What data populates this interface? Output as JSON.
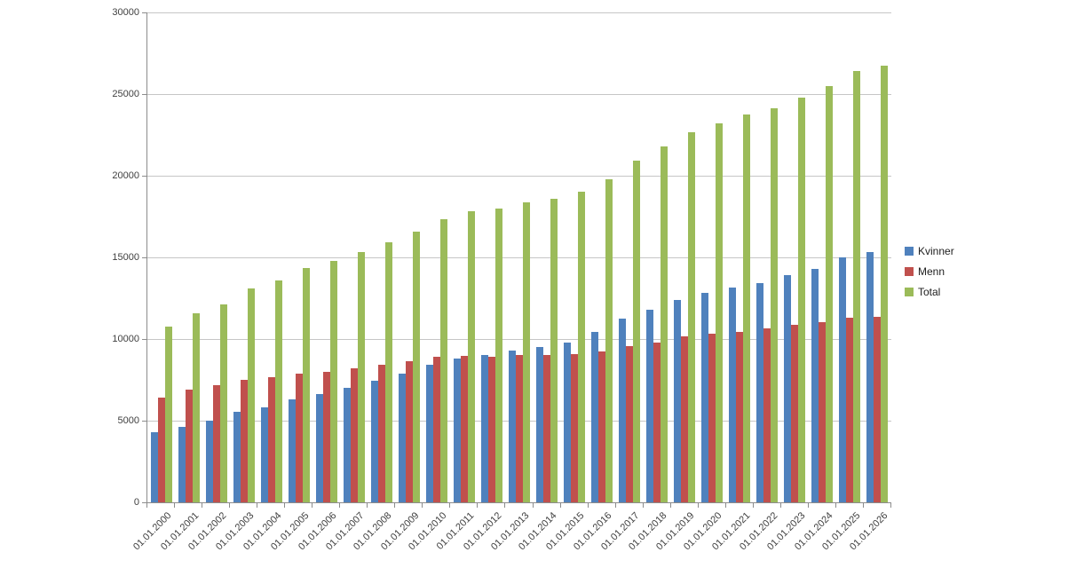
{
  "chart_data": {
    "type": "bar",
    "title": "",
    "xlabel": "",
    "ylabel": "",
    "ylim": [
      0,
      30000
    ],
    "ytick_step": 5000,
    "grid": "horizontal",
    "legend_position": "right",
    "categories": [
      "01.01.2000",
      "01.01.2001",
      "01.01.2002",
      "01.01.2003",
      "01.01.2004",
      "01.01.2005",
      "01.01.2006",
      "01.01.2007",
      "01.01.2008",
      "01.01.2009",
      "01.01.2010",
      "01.01.2011",
      "01.01.2012",
      "01.01.2013",
      "01.01.2014",
      "01.01.2015",
      "01.01.2016",
      "01.01.2017",
      "01.01.2018",
      "01.01.2019",
      "01.01.2020",
      "01.01.2021",
      "01.01.2022",
      "01.01.2023",
      "01.01.2024",
      "01.01.2025",
      "01.01.2026"
    ],
    "series": [
      {
        "name": "Kvinner",
        "color": "#4F81BD",
        "values": [
          4300,
          4600,
          5000,
          5550,
          5800,
          6300,
          6650,
          7000,
          7450,
          7900,
          8400,
          8800,
          9000,
          9300,
          9500,
          9800,
          10450,
          11250,
          11800,
          12400,
          12800,
          13150,
          13450,
          13900,
          14300,
          15000,
          15350
        ]
      },
      {
        "name": "Menn",
        "color": "#C0504D",
        "values": [
          6400,
          6900,
          7150,
          7500,
          7650,
          7900,
          8000,
          8200,
          8450,
          8650,
          8900,
          8950,
          8900,
          9000,
          9000,
          9100,
          9250,
          9550,
          9800,
          10150,
          10300,
          10450,
          10650,
          10850,
          11050,
          11300,
          11350
        ]
      },
      {
        "name": "Total",
        "color": "#9BBB59",
        "values": [
          10750,
          11600,
          12100,
          13100,
          13600,
          14350,
          14800,
          15300,
          15950,
          16600,
          17350,
          17800,
          18000,
          18350,
          18600,
          19000,
          19800,
          20900,
          21800,
          22650,
          23200,
          23750,
          24150,
          24800,
          25500,
          26400,
          26750
        ]
      }
    ],
    "colors": {
      "background": "#ffffff",
      "gridline": "#c6c6c6",
      "axis_line": "#8c8c8c",
      "tick_label": "#404040"
    }
  }
}
